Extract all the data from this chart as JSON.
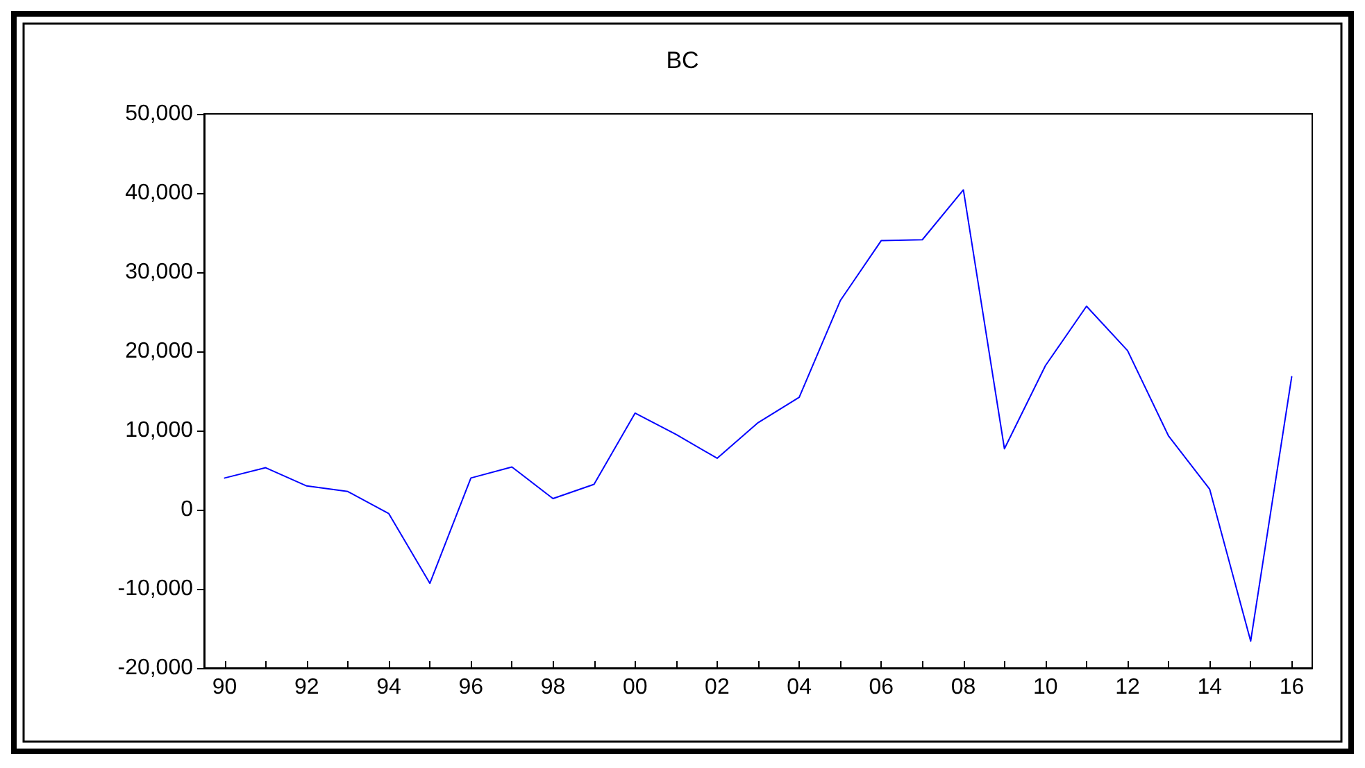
{
  "chart_data": {
    "type": "line",
    "title": "BC",
    "x": [
      1990,
      1991,
      1992,
      1993,
      1994,
      1995,
      1996,
      1997,
      1998,
      1999,
      2000,
      2001,
      2002,
      2003,
      2004,
      2005,
      2006,
      2007,
      2008,
      2009,
      2010,
      2011,
      2012,
      2013,
      2014,
      2015,
      2016
    ],
    "series": [
      {
        "color": "#0000ff",
        "values": [
          4000,
          5300,
          3000,
          2300,
          -500,
          -9300,
          4000,
          5400,
          1400,
          3200,
          12200,
          9500,
          6500,
          11000,
          14200,
          26400,
          34000,
          34100,
          40400,
          7700,
          18200,
          25700,
          20100,
          9300,
          2600,
          -16600,
          16800
        ]
      }
    ],
    "xlim": [
      1989.5,
      2016.5
    ],
    "xticks": [
      {
        "value": 1990,
        "label": "90"
      },
      {
        "value": 1991,
        "label": null
      },
      {
        "value": 1992,
        "label": "92"
      },
      {
        "value": 1993,
        "label": null
      },
      {
        "value": 1994,
        "label": "94"
      },
      {
        "value": 1995,
        "label": null
      },
      {
        "value": 1996,
        "label": "96"
      },
      {
        "value": 1997,
        "label": null
      },
      {
        "value": 1998,
        "label": "98"
      },
      {
        "value": 1999,
        "label": null
      },
      {
        "value": 2000,
        "label": "00"
      },
      {
        "value": 2001,
        "label": null
      },
      {
        "value": 2002,
        "label": "02"
      },
      {
        "value": 2003,
        "label": null
      },
      {
        "value": 2004,
        "label": "04"
      },
      {
        "value": 2005,
        "label": null
      },
      {
        "value": 2006,
        "label": "06"
      },
      {
        "value": 2007,
        "label": null
      },
      {
        "value": 2008,
        "label": "08"
      },
      {
        "value": 2009,
        "label": null
      },
      {
        "value": 2010,
        "label": "10"
      },
      {
        "value": 2011,
        "label": null
      },
      {
        "value": 2012,
        "label": "12"
      },
      {
        "value": 2013,
        "label": null
      },
      {
        "value": 2014,
        "label": "14"
      },
      {
        "value": 2015,
        "label": null
      },
      {
        "value": 2016,
        "label": "16"
      }
    ],
    "ylim": [
      -20000,
      50000
    ],
    "yticks": [
      {
        "value": -20000,
        "label": "-20,000"
      },
      {
        "value": -10000,
        "label": "-10,000"
      },
      {
        "value": 0,
        "label": "0"
      },
      {
        "value": 10000,
        "label": "10,000"
      },
      {
        "value": 20000,
        "label": "20,000"
      },
      {
        "value": 30000,
        "label": "30,000"
      },
      {
        "value": 40000,
        "label": "40,000"
      },
      {
        "value": 50000,
        "label": "50,000"
      }
    ],
    "grid": false,
    "marker": "none",
    "line_style": "solid"
  }
}
